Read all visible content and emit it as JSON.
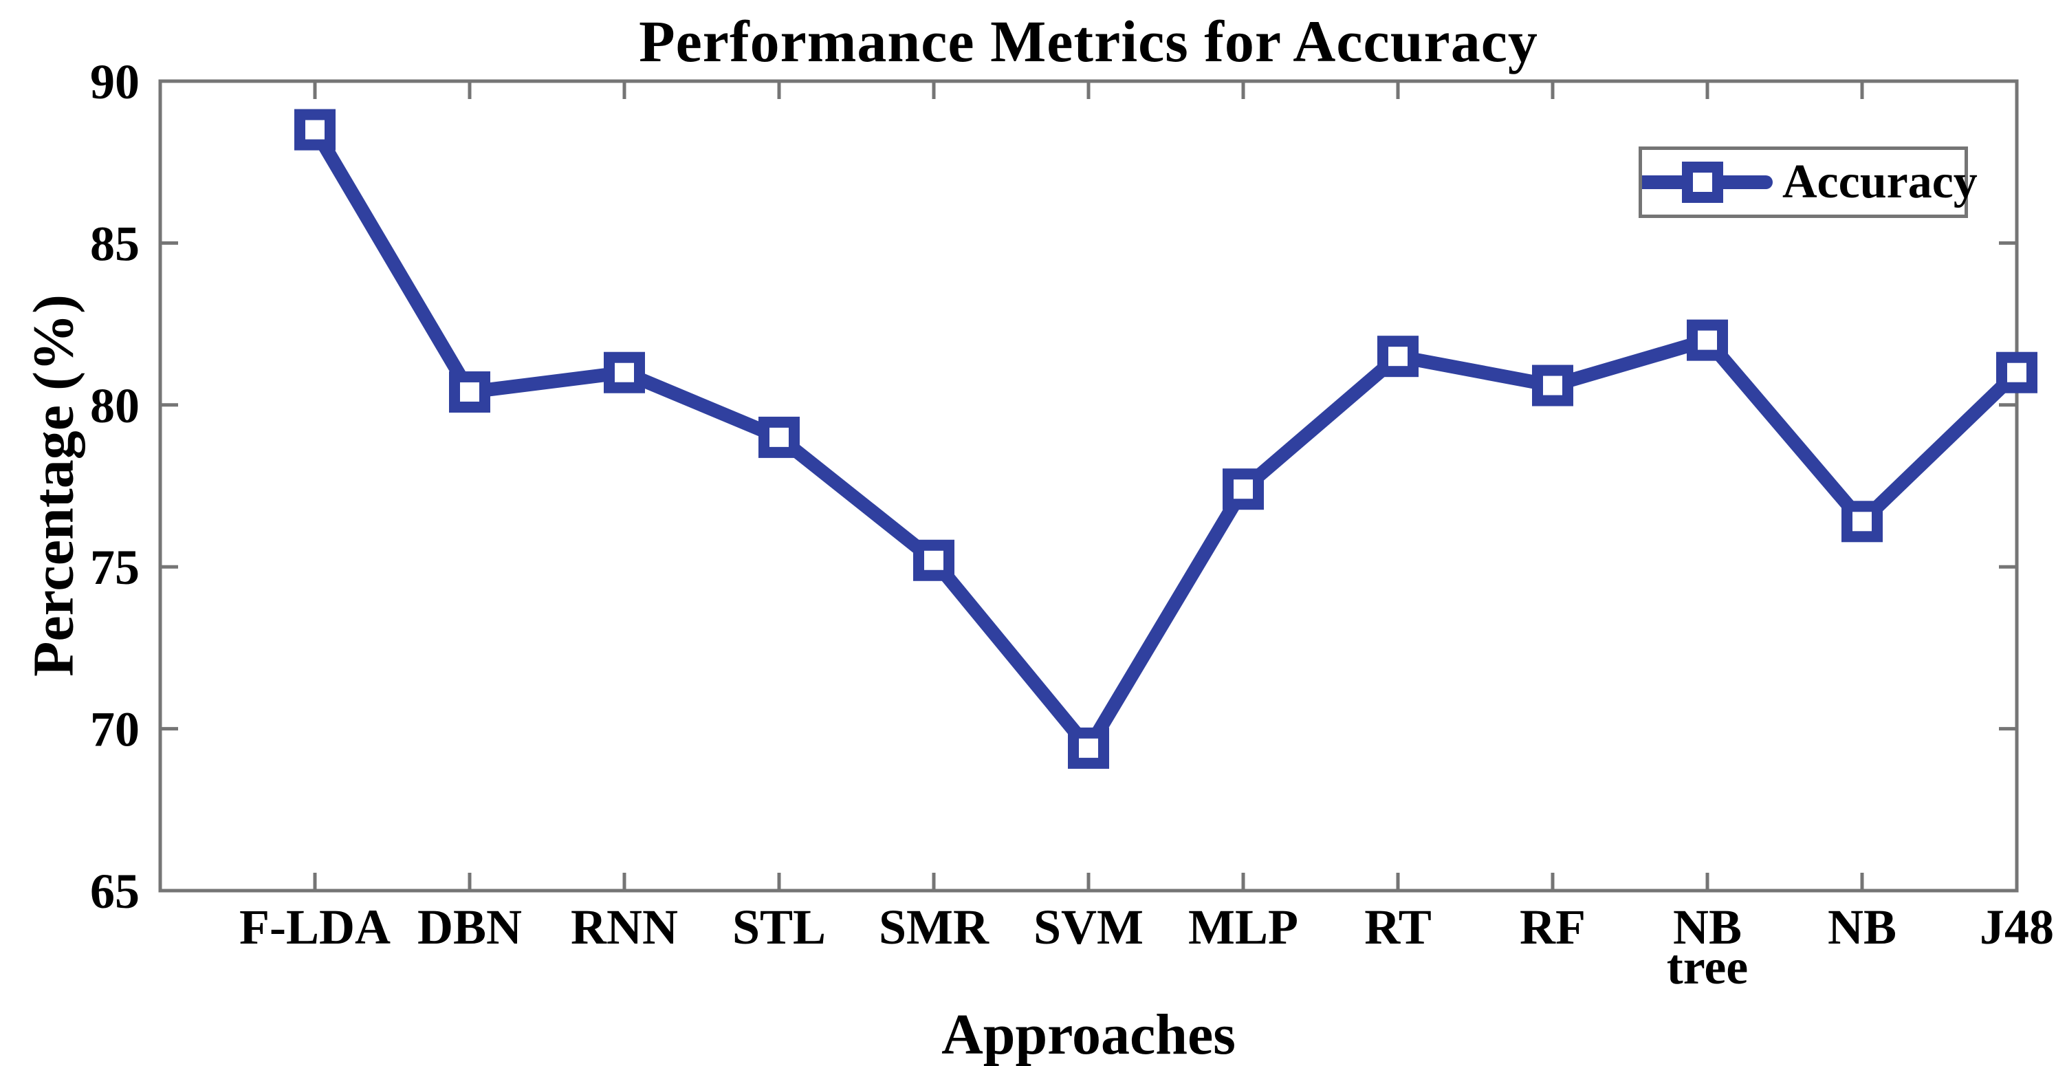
{
  "figure": {
    "title": "Performance Metrics for Accuracy",
    "x_axis_label": "Approaches",
    "y_axis_label": "Percentage (%)",
    "legend_label": "Accuracy"
  },
  "chart_data": {
    "type": "line",
    "title": "Performance Metrics for Accuracy",
    "xlabel": "Approaches",
    "ylabel": "Percentage (%)",
    "categories": [
      "F-LDA",
      "DBN",
      "RNN",
      "STL",
      "SMR",
      "SVM",
      "MLP",
      "RT",
      "RF",
      "NB tree",
      "NB",
      "J48"
    ],
    "series": [
      {
        "name": "Accuracy",
        "values": [
          88.5,
          80.4,
          81,
          79,
          75.2,
          69.4,
          77.4,
          81.5,
          80.6,
          82,
          76.4,
          81
        ]
      }
    ],
    "ylim": [
      65,
      90
    ],
    "yticks": [
      90,
      85,
      80,
      75,
      70,
      65
    ],
    "grid": false,
    "legend_position": "top-right",
    "marker": "open-square",
    "colors": {
      "line": "#30409f",
      "axis": "#757575",
      "text": "#000000",
      "background": "#ffffff"
    }
  }
}
